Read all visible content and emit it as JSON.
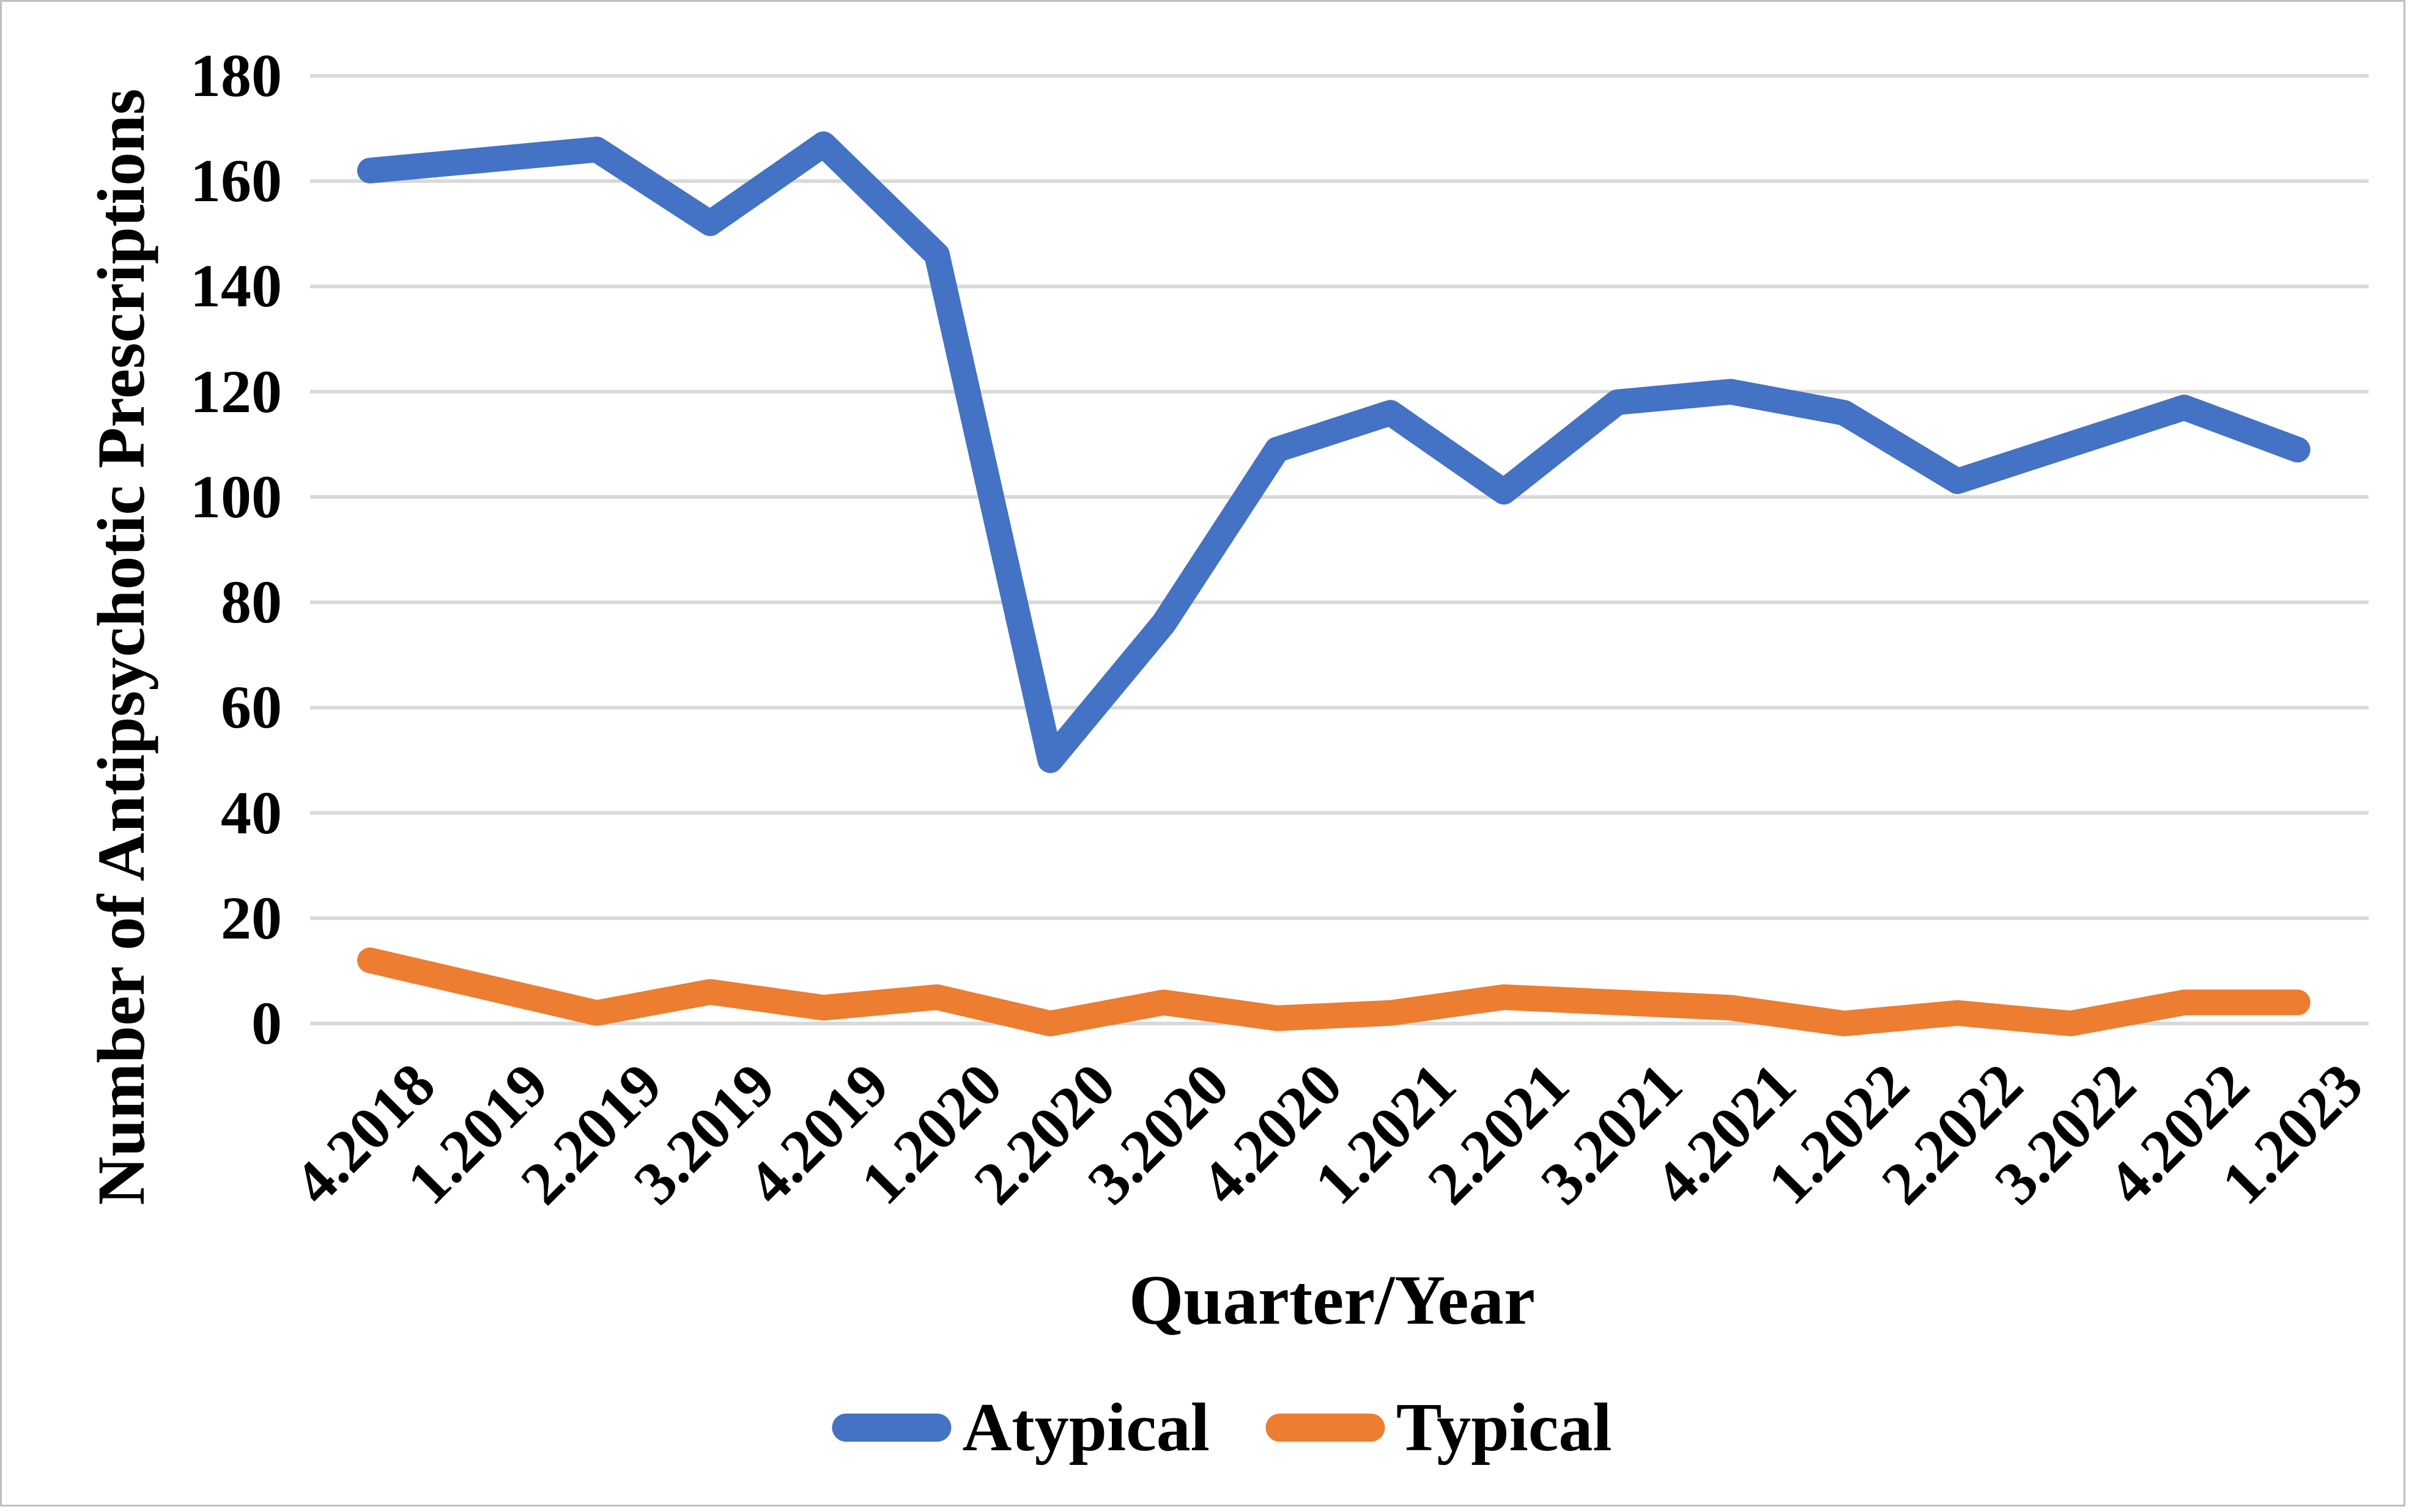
{
  "figure": {
    "background": "#FFFFFF",
    "border_color": "#BFBFBF"
  },
  "chart_data": {
    "type": "line",
    "title": "",
    "xlabel": "Quarter/Year",
    "ylabel": "Number of Antipsychotic Prescriptions",
    "categories": [
      "4.2018",
      "1.2019",
      "2.2019",
      "3.2019",
      "4.2019",
      "1.2020",
      "2.2020",
      "3.2020",
      "4.2020",
      "1.2021",
      "2.2021",
      "3.2021",
      "4.2021",
      "1.2022",
      "2.2022",
      "3.2022",
      "4.2022",
      "1.2023"
    ],
    "series": [
      {
        "name": "Atypical",
        "color": "#4472C4",
        "values": [
          162,
          164,
          166,
          152,
          167,
          146,
          50,
          76,
          109,
          116,
          101,
          118,
          120,
          116,
          103,
          110,
          117,
          109
        ]
      },
      {
        "name": "Typical",
        "color": "#ED7D31",
        "values": [
          12,
          7,
          2,
          6,
          3,
          5,
          0,
          4,
          1,
          2,
          5,
          4,
          3,
          0,
          2,
          0,
          4,
          4
        ]
      }
    ],
    "ylim": [
      0,
      180
    ],
    "ytick_step": 20,
    "ytick_labels": [
      "180",
      "160",
      "140",
      "120",
      "100",
      "80",
      "60",
      "40",
      "20",
      "0"
    ],
    "grid": true,
    "grid_color": "#D9D9D9",
    "legend_position": "bottom"
  }
}
